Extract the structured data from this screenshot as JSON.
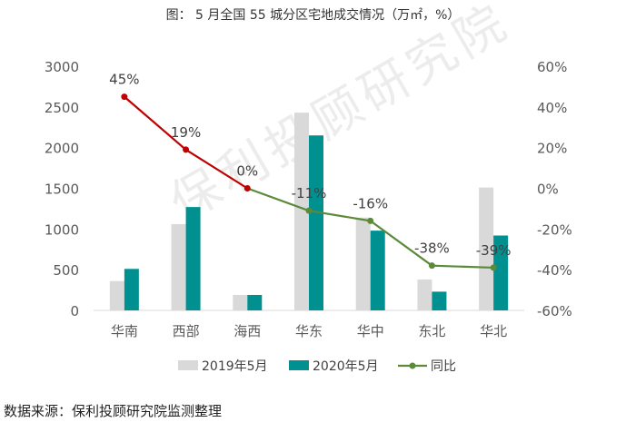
{
  "title": "图：  5 月全国 55 城分区宅地成交情况（万㎡，%）",
  "source": "数据来源：保利投顾研究院监测整理",
  "watermark": "保利投顾研究院",
  "colors": {
    "series_2019": "#d9d9d9",
    "series_2020": "#009090",
    "yoy_decline": "#5a8a3a",
    "yoy_rise": "#c00000"
  },
  "chart_data": {
    "type": "bar",
    "categories": [
      "华南",
      "西部",
      "海西",
      "华东",
      "华中",
      "东北",
      "华北"
    ],
    "series": [
      {
        "name": "2019年5月",
        "type": "bar",
        "axis": "left",
        "values": [
          360,
          1060,
          190,
          2430,
          1140,
          380,
          1510
        ]
      },
      {
        "name": "2020年5月",
        "type": "bar",
        "axis": "left",
        "values": [
          510,
          1270,
          190,
          2150,
          980,
          230,
          920
        ]
      },
      {
        "name": "同比",
        "type": "line",
        "axis": "right",
        "values": [
          45,
          19,
          0,
          -11,
          -16,
          -38,
          -39
        ],
        "labels": [
          "45%",
          "19%",
          "0%",
          "-11%",
          "-16%",
          "-38%",
          "-39%"
        ]
      }
    ],
    "y_left": {
      "min": 0,
      "max": 3000,
      "ticks": [
        "0",
        "500",
        "1000",
        "1500",
        "2000",
        "2500",
        "3000"
      ]
    },
    "y_right": {
      "min": -60,
      "max": 60,
      "ticks": [
        "-60%",
        "-40%",
        "-20%",
        "0%",
        "20%",
        "40%",
        "60%"
      ]
    },
    "grid": false,
    "legend_position": "bottom"
  }
}
